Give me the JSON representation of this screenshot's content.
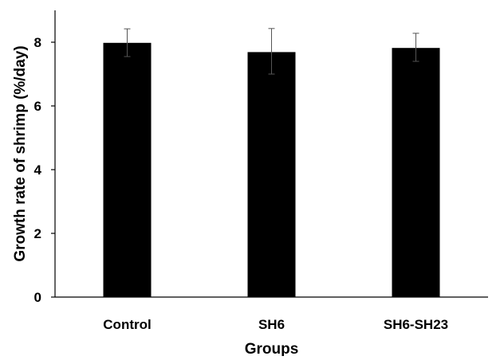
{
  "chart_data": {
    "type": "bar",
    "title": "",
    "xlabel": "Groups",
    "ylabel": "Growth rate of shrimp (%/day)",
    "categories": [
      "Control",
      "SH6",
      "SH6-SH23"
    ],
    "values": [
      7.98,
      7.69,
      7.82
    ],
    "error_upper": [
      8.42,
      8.43,
      8.28
    ],
    "error_lower": [
      7.55,
      7.0,
      7.4
    ],
    "ylim": [
      0,
      9
    ],
    "yticks": [
      0,
      2,
      4,
      6,
      8
    ],
    "ytick_labels": [
      "0",
      "2",
      "4",
      "6",
      "8"
    ],
    "grid": false,
    "legend": "none",
    "colors": {
      "bar": "#000000",
      "axis": "#000000",
      "error_bar": "#555555"
    }
  }
}
